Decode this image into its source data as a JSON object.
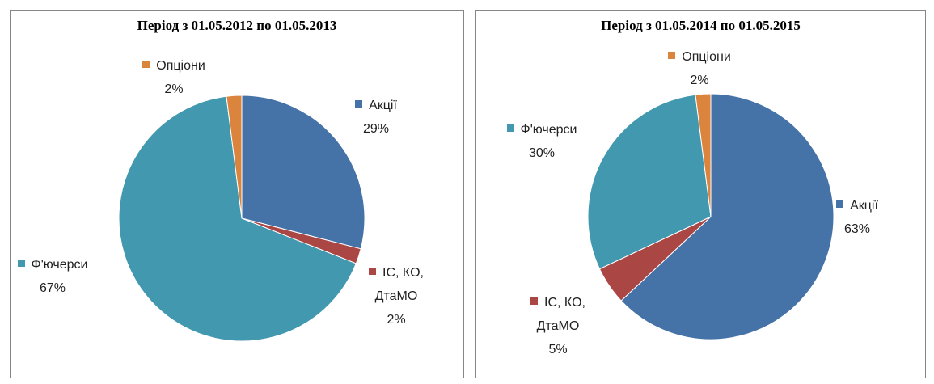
{
  "chart_data": [
    {
      "type": "pie",
      "title": "Період з 01.05.2012 по 01.05.2013",
      "categories": [
        "Акції",
        "ІС, КО, ДтаМО",
        "Ф'ючерси",
        "Опціони"
      ],
      "values": [
        29,
        2,
        67,
        2
      ],
      "value_labels": [
        "29%",
        "2%",
        "67%",
        "2%"
      ],
      "colors": [
        "#4572a7",
        "#aa4643",
        "#4198af",
        "#db843d"
      ]
    },
    {
      "type": "pie",
      "title": "Період з 01.05.2014 по 01.05.2015",
      "categories": [
        "Акції",
        "ІС, КО, ДтаМО",
        "Ф'ючерси",
        "Опціони"
      ],
      "values": [
        63,
        5,
        30,
        2
      ],
      "value_labels": [
        "63%",
        "5%",
        "30%",
        "2%"
      ],
      "colors": [
        "#4572a7",
        "#aa4643",
        "#4198af",
        "#db843d"
      ]
    }
  ]
}
